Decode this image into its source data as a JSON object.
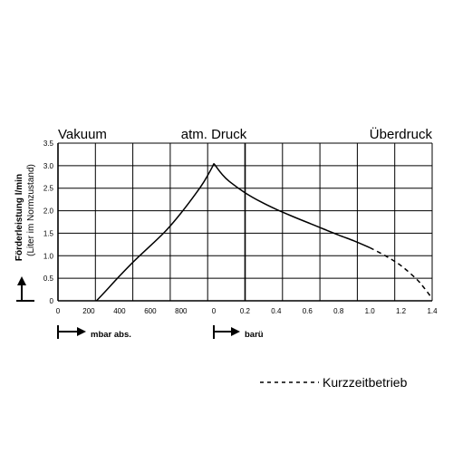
{
  "chart_data": {
    "type": "line",
    "title": "",
    "region_labels": {
      "left": "Vakuum",
      "center": "atm. Druck",
      "right": "Überdruck"
    },
    "ylabel": "Förderleistung l/min",
    "ylabel_sub": "(Liter im Normzustand)",
    "ylim": [
      0,
      3.5
    ],
    "yticks": [
      {
        "value": 0,
        "label": "0"
      },
      {
        "value": 0.5,
        "label": "0.5"
      },
      {
        "value": 1.0,
        "label": "1.0"
      },
      {
        "value": 1.5,
        "label": "1.5"
      },
      {
        "value": 2.0,
        "label": "2.0"
      },
      {
        "value": 2.5,
        "label": "2.5"
      },
      {
        "value": 3.0,
        "label": "3.0"
      },
      {
        "value": 3.5,
        "label": "3.5"
      }
    ],
    "vacuum_axis": {
      "label": "mbar abs.",
      "range": [
        0,
        1013
      ],
      "ticks": [
        {
          "value": 0,
          "label": "0"
        },
        {
          "value": 200,
          "label": "200"
        },
        {
          "value": 400,
          "label": "400"
        },
        {
          "value": 600,
          "label": "600"
        },
        {
          "value": 800,
          "label": "800"
        }
      ]
    },
    "pressure_axis": {
      "label": "barü",
      "range": [
        0,
        1.4
      ],
      "ticks": [
        {
          "value": 0,
          "label": "0"
        },
        {
          "value": 0.2,
          "label": "0.2"
        },
        {
          "value": 0.4,
          "label": "0.4"
        },
        {
          "value": 0.6,
          "label": "0.6"
        },
        {
          "value": 0.8,
          "label": "0.8"
        },
        {
          "value": 1.0,
          "label": "1.0"
        },
        {
          "value": 1.2,
          "label": "1.2"
        },
        {
          "value": 1.4,
          "label": "1.4"
        }
      ]
    },
    "grid": true,
    "series": [
      {
        "segment": "vacuum",
        "style": "solid",
        "x_mbar": [
          250,
          300,
          400,
          500,
          600,
          700,
          800,
          900,
          950,
          1000,
          1013
        ],
        "y": [
          0,
          0.18,
          0.55,
          0.9,
          1.22,
          1.55,
          1.95,
          2.4,
          2.65,
          2.95,
          3.05
        ]
      },
      {
        "segment": "overpressure",
        "style": "solid",
        "x_bar": [
          0,
          0.05,
          0.1,
          0.2,
          0.3,
          0.4,
          0.5,
          0.6,
          0.7,
          0.8,
          0.9,
          1.0
        ],
        "y": [
          3.05,
          2.82,
          2.65,
          2.4,
          2.2,
          2.03,
          1.88,
          1.74,
          1.6,
          1.46,
          1.33,
          1.18
        ]
      },
      {
        "segment": "overpressure",
        "style": "dashed",
        "x_bar": [
          1.0,
          1.1,
          1.2,
          1.3,
          1.35,
          1.4
        ],
        "y": [
          1.18,
          1.0,
          0.78,
          0.48,
          0.28,
          0.05
        ]
      }
    ],
    "legend": [
      {
        "style": "dashed",
        "label": "Kurzzeitbetrieb"
      }
    ]
  }
}
